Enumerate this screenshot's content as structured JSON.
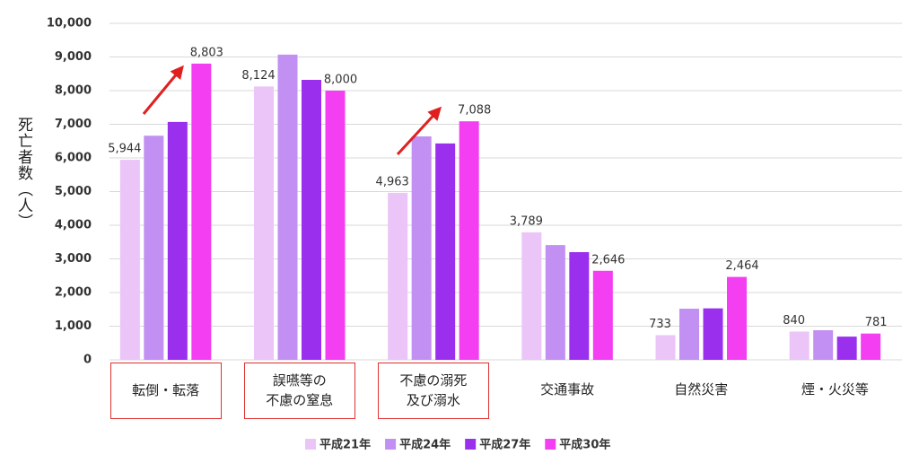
{
  "chart_data": {
    "type": "bar",
    "y_label": "死亡者数（人）",
    "categories": [
      "転倒・転落",
      "誤嚥等の\n不慮の窒息",
      "不慮の溺死\n及び溺水",
      "交通事故",
      "自然災害",
      "煙・火災等"
    ],
    "series": [
      {
        "name": "平成21年",
        "color": "#ebc5f7",
        "values": [
          5944,
          8124,
          4963,
          3789,
          733,
          840
        ],
        "value_labels": [
          "5,944",
          "8,124",
          "4,963",
          "3,789",
          "733",
          "840"
        ]
      },
      {
        "name": "平成24年",
        "color": "#c190f2",
        "values": [
          6660,
          9070,
          6640,
          3410,
          1520,
          880
        ]
      },
      {
        "name": "平成27年",
        "color": "#9a30ee",
        "values": [
          7070,
          8320,
          6430,
          3200,
          1530,
          690
        ]
      },
      {
        "name": "平成30年",
        "color": "#f43ef2",
        "values": [
          8803,
          8000,
          7088,
          2646,
          2464,
          781
        ],
        "value_labels": [
          "8,803",
          "8,000",
          "7,088",
          "2,646",
          "2,464",
          "781"
        ]
      }
    ],
    "ylim": [
      0,
      10000
    ],
    "yticks": [
      0,
      {
        "value": 1000,
        "label": "1,000"
      },
      {
        "value": 2000,
        "label": "2,000"
      },
      {
        "value": 3000,
        "label": "3,000"
      },
      {
        "value": 4000,
        "label": "4,000"
      },
      {
        "value": 5000,
        "label": "5,000"
      },
      {
        "value": 6000,
        "label": "6,000"
      },
      {
        "value": 7000,
        "label": "7,000"
      },
      {
        "value": 8000,
        "label": "8,000"
      },
      {
        "value": 9000,
        "label": "9,000"
      },
      {
        "value": 10000,
        "label": "10,000"
      }
    ],
    "grid": true
  }
}
